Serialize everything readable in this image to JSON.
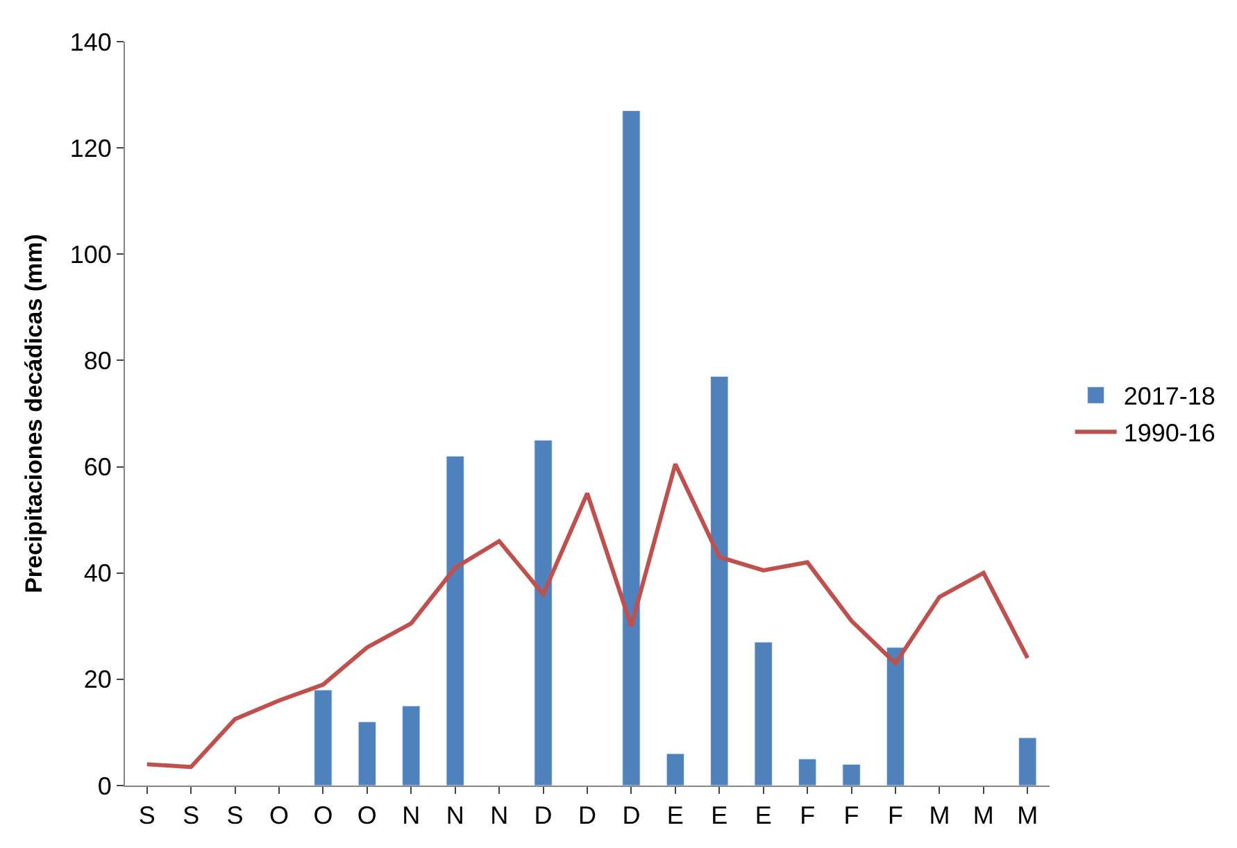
{
  "chart_data": {
    "type": "bar",
    "ylabel": "Precipitaciones decádicas (mm)",
    "categories": [
      "S",
      "S",
      "S",
      "O",
      "O",
      "O",
      "N",
      "N",
      "N",
      "D",
      "D",
      "D",
      "E",
      "E",
      "E",
      "F",
      "F",
      "F",
      "M",
      "M",
      "M"
    ],
    "series": [
      {
        "name": "2017-18",
        "color": "#4f81bd",
        "values": [
          null,
          null,
          null,
          null,
          18,
          12,
          15,
          62,
          null,
          65,
          null,
          127,
          6,
          77,
          27,
          5,
          4,
          26,
          null,
          null,
          9
        ]
      },
      {
        "name": "1990-16",
        "type": "line",
        "color": "#c0504d",
        "values": [
          4,
          3.5,
          12.5,
          16,
          19,
          26,
          30.5,
          41,
          46,
          36,
          55,
          30,
          60.5,
          43,
          40.5,
          42,
          31,
          23,
          35.5,
          40,
          24
        ]
      }
    ],
    "ylim": [
      0,
      140
    ],
    "yticks": [
      0,
      20,
      40,
      60,
      80,
      100,
      120,
      140
    ],
    "legend": "right",
    "marker": "none",
    "line_style": "solid"
  }
}
